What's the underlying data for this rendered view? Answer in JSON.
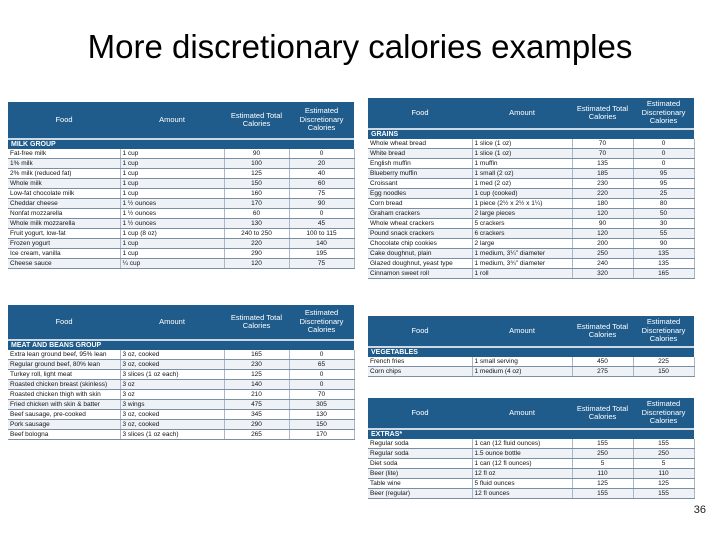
{
  "title": "More discretionary calories examples",
  "page_number": "36",
  "headers": {
    "food": "Food",
    "amount": "Amount",
    "est_total": "Estimated Total Calories",
    "est_disc": "Estimated Discretionary Calories"
  },
  "milk": {
    "section": "MILK GROUP",
    "rows": [
      [
        "Fat-free milk",
        "1 cup",
        "90",
        "0"
      ],
      [
        "1% milk",
        "1 cup",
        "100",
        "20"
      ],
      [
        "2% milk (reduced fat)",
        "1 cup",
        "125",
        "40"
      ],
      [
        "Whole milk",
        "1 cup",
        "150",
        "60"
      ],
      [
        "Low-fat chocolate milk",
        "1 cup",
        "160",
        "75"
      ],
      [
        "Cheddar cheese",
        "1 ½ ounces",
        "170",
        "90"
      ],
      [
        "Nonfat mozzarella",
        "1 ½ ounces",
        "60",
        "0"
      ],
      [
        "Whole milk mozzarella",
        "1 ½ ounces",
        "130",
        "45"
      ],
      [
        "Fruit yogurt, low-fat",
        "1 cup (8 oz)",
        "240 to 250",
        "100 to 115"
      ],
      [
        "Frozen yogurt",
        "1 cup",
        "220",
        "140"
      ],
      [
        "Ice cream, vanilla",
        "1 cup",
        "290",
        "195"
      ],
      [
        "Cheese sauce",
        "¼ cup",
        "120",
        "75"
      ]
    ]
  },
  "meat": {
    "section": "MEAT AND BEANS GROUP",
    "rows": [
      [
        "Extra lean ground beef, 95% lean",
        "3 oz, cooked",
        "165",
        "0"
      ],
      [
        "Regular ground beef, 80% lean",
        "3 oz, cooked",
        "230",
        "65"
      ],
      [
        "Turkey roll, light meat",
        "3 slices (1 oz each)",
        "125",
        "0"
      ],
      [
        "Roasted chicken breast (skinless)",
        "3 oz",
        "140",
        "0"
      ],
      [
        "Roasted chicken thigh with skin",
        "3 oz",
        "210",
        "70"
      ],
      [
        "Fried chicken with skin & batter",
        "3 wings",
        "475",
        "305"
      ],
      [
        "Beef sausage, pre-cooked",
        "3 oz, cooked",
        "345",
        "130"
      ],
      [
        "Pork sausage",
        "3 oz, cooked",
        "290",
        "150"
      ],
      [
        "Beef bologna",
        "3 slices (1 oz each)",
        "265",
        "170"
      ]
    ]
  },
  "grains": {
    "section": "GRAINS",
    "rows": [
      [
        "Whole wheat bread",
        "1 slice (1 oz)",
        "70",
        "0"
      ],
      [
        "White bread",
        "1 slice (1 oz)",
        "70",
        "0"
      ],
      [
        "English muffin",
        "1 muffin",
        "135",
        "0"
      ],
      [
        "Blueberry muffin",
        "1 small (2 oz)",
        "185",
        "95"
      ],
      [
        "Croissant",
        "1 med (2 oz)",
        "230",
        "95"
      ],
      [
        "Egg noodles",
        "1 cup (cooked)",
        "220",
        "25"
      ],
      [
        "Corn bread",
        "1 piece (2½ x 2½ x 1¼)",
        "180",
        "80"
      ],
      [
        "Graham crackers",
        "2 large pieces",
        "120",
        "50"
      ],
      [
        "Whole wheat crackers",
        "5 crackers",
        "90",
        "30"
      ],
      [
        "Pound snack crackers",
        "6 crackers",
        "120",
        "55"
      ],
      [
        "Chocolate chip cookies",
        "2 large",
        "200",
        "90"
      ],
      [
        "Cake doughnut, plain",
        "1 medium, 3¼\" diameter",
        "250",
        "135"
      ],
      [
        "Glazed doughnut, yeast type",
        "1 medium, 3¾\" diameter",
        "240",
        "135"
      ],
      [
        "Cinnamon sweet roll",
        "1 roll",
        "320",
        "165"
      ]
    ]
  },
  "vegetables": {
    "section": "VEGETABLES",
    "rows": [
      [
        "French fries",
        "1 small serving",
        "450",
        "225"
      ],
      [
        "Corn chips",
        "1 medium (4 oz)",
        "275",
        "150"
      ]
    ]
  },
  "extras": {
    "section": "EXTRAS*",
    "rows": [
      [
        "Regular soda",
        "1 can (12 fluid ounces)",
        "155",
        "155"
      ],
      [
        "Regular soda",
        "1.5 ounce bottle",
        "250",
        "250"
      ],
      [
        "Diet soda",
        "1 can (12 fl ounces)",
        "5",
        "5"
      ],
      [
        "Beer (lite)",
        "12 fl oz",
        "110",
        "110"
      ],
      [
        "Table wine",
        "5 fluid ounces",
        "125",
        "125"
      ],
      [
        "Beer (regular)",
        "12 fl ounces",
        "155",
        "155"
      ]
    ]
  }
}
